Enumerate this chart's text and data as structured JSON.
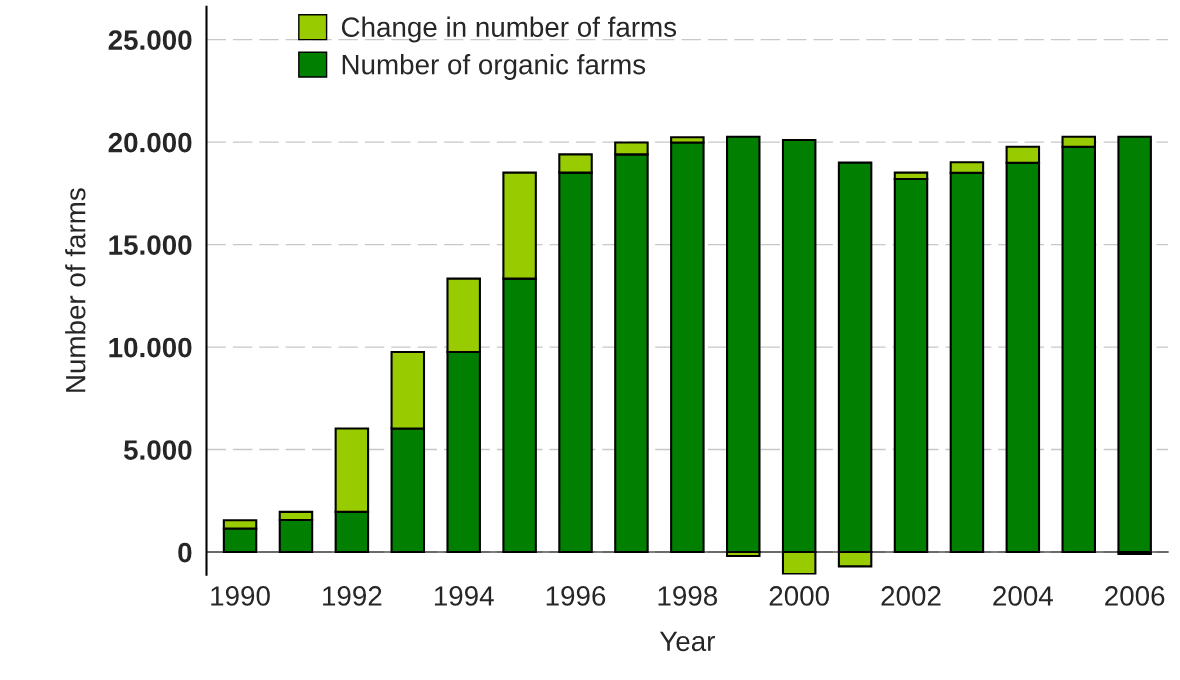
{
  "chart_data": {
    "type": "bar",
    "stacked": true,
    "xlabel": "Year",
    "ylabel": "Number of farms",
    "categories": [
      "1990",
      null,
      "1992",
      null,
      "1994",
      null,
      "1996",
      null,
      "1998",
      null,
      "2000",
      null,
      "2002",
      null,
      "2004",
      null,
      "2006"
    ],
    "series": [
      {
        "name": "Number of organic farms",
        "color": "#007f00",
        "values": [
          1150,
          1560,
          1960,
          6030,
          9760,
          13340,
          18510,
          19400,
          19980,
          20260,
          20100,
          19000,
          18200,
          18500,
          18990,
          19770,
          20260
        ]
      },
      {
        "name": "Change in number of farms",
        "color": "#99cc00",
        "values": [
          400,
          400,
          4070,
          3730,
          3580,
          5170,
          890,
          580,
          260,
          -190,
          -1070,
          -700,
          310,
          520,
          780,
          490,
          -90
        ]
      }
    ],
    "ylim": [
      -1100,
      26600
    ],
    "yticks": [
      0,
      {
        "value": 5000,
        "label": "5.000"
      },
      {
        "value": 10000,
        "label": "10.000"
      },
      {
        "value": 15000,
        "label": "15.000"
      },
      {
        "value": 20000,
        "label": "20.000"
      },
      {
        "value": 25000,
        "label": "25.000"
      }
    ],
    "grid": "y",
    "legend": "top left"
  }
}
